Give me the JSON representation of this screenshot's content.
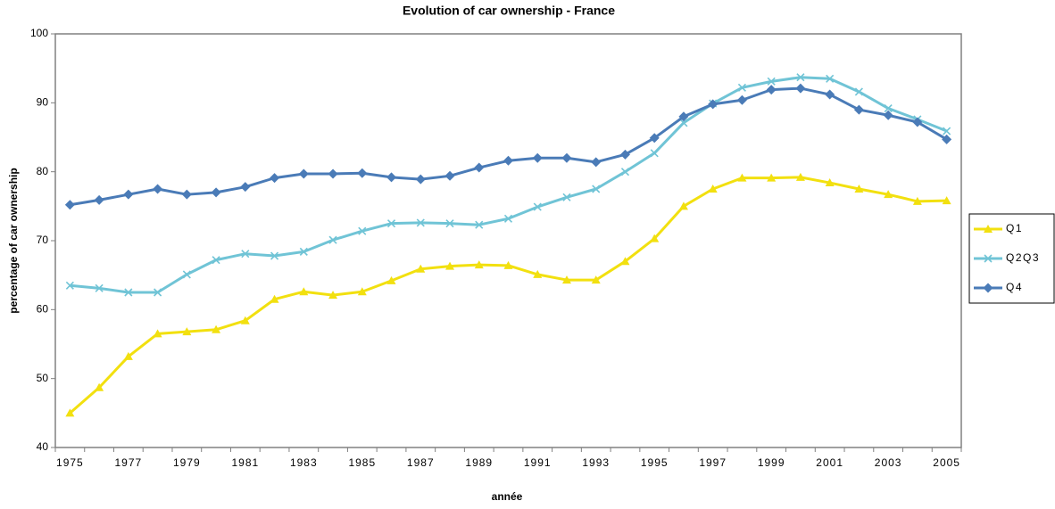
{
  "chart_data": {
    "type": "line",
    "title": "Evolution of car ownership - France",
    "x_label": "année",
    "y_label": "percentage of car ownership",
    "categories": [
      "1975",
      null,
      "1977",
      null,
      "1979",
      null,
      "1981",
      null,
      "1983",
      null,
      "1985",
      null,
      "1987",
      null,
      "1989",
      null,
      "1991",
      null,
      "1993",
      null,
      "1995",
      null,
      "1997",
      null,
      "1999",
      null,
      "2001",
      null,
      "2003",
      null,
      "2005"
    ],
    "series": [
      {
        "name": "Q1",
        "color": "#f2e00f",
        "marker": "triangle",
        "values": [
          45.0,
          48.7,
          53.2,
          56.5,
          56.8,
          57.1,
          58.4,
          61.5,
          62.6,
          62.1,
          62.6,
          64.2,
          65.9,
          66.3,
          66.5,
          66.4,
          65.1,
          64.3,
          64.3,
          67.0,
          70.3,
          75.0,
          77.5,
          79.1,
          79.1,
          79.2,
          78.4,
          77.5,
          76.7,
          75.7,
          75.8
        ]
      },
      {
        "name": "Q2Q3",
        "color": "#70c4d6",
        "marker": "x",
        "values": [
          63.5,
          63.1,
          62.5,
          62.5,
          65.1,
          67.2,
          68.1,
          67.8,
          68.4,
          70.1,
          71.4,
          72.5,
          72.6,
          72.5,
          72.3,
          73.2,
          74.9,
          76.3,
          77.5,
          80.0,
          82.7,
          87.1,
          89.9,
          92.2,
          93.1,
          93.7,
          93.5,
          91.6,
          89.2,
          87.6,
          85.9
        ]
      },
      {
        "name": "Q4",
        "color": "#4a7bb7",
        "marker": "diamond",
        "values": [
          75.2,
          75.9,
          76.7,
          77.5,
          76.7,
          77.0,
          77.8,
          79.1,
          79.7,
          79.7,
          79.8,
          79.2,
          78.9,
          79.4,
          80.6,
          81.6,
          82.0,
          82.0,
          81.4,
          82.5,
          84.9,
          88.0,
          89.8,
          90.4,
          91.9,
          92.1,
          91.2,
          89.0,
          88.2,
          87.2,
          84.7
        ]
      }
    ],
    "ylim": [
      40,
      100
    ],
    "yticks": [
      40,
      50,
      60,
      70,
      80,
      90,
      100
    ],
    "grid": false,
    "legend": "right"
  }
}
